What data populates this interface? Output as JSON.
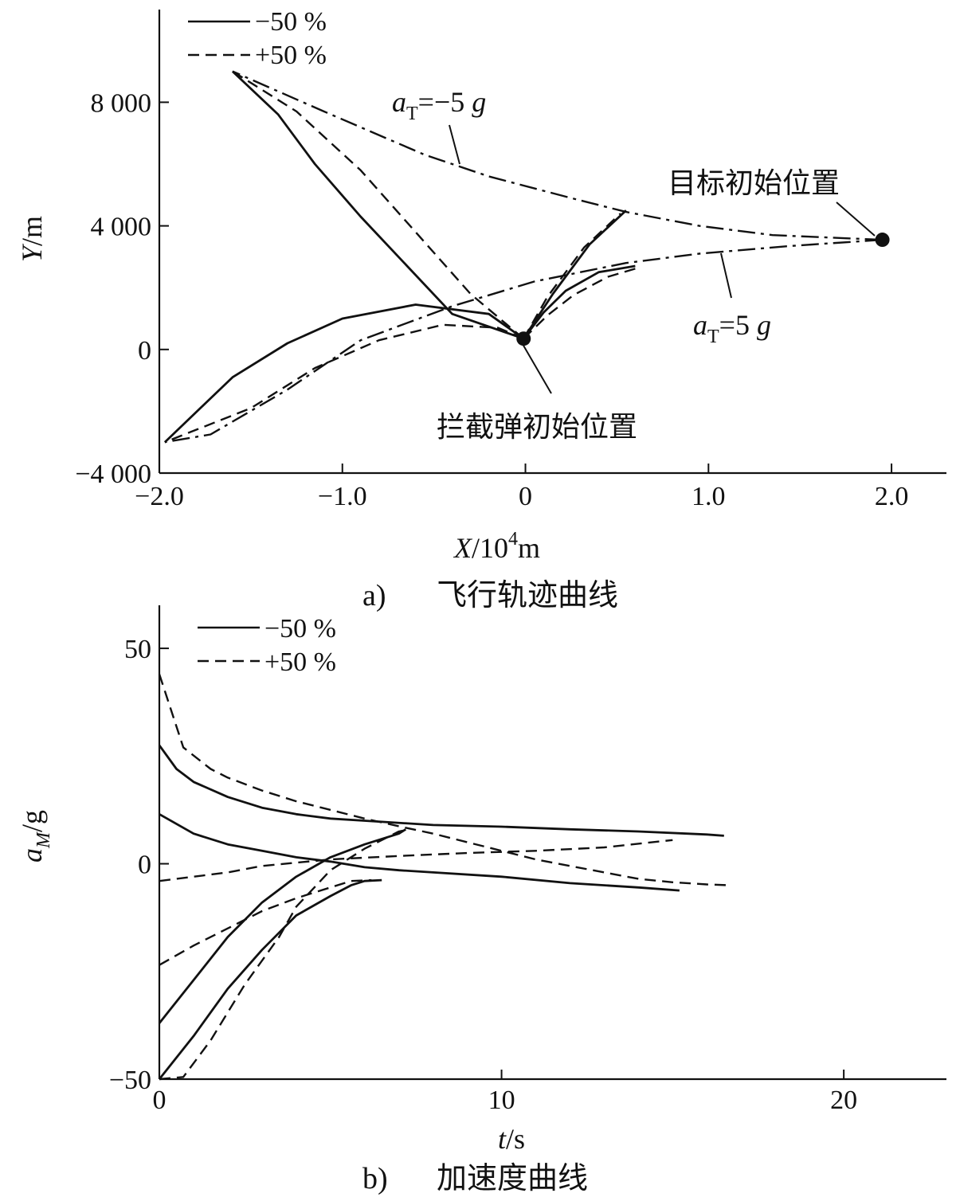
{
  "chart_data": [
    {
      "type": "line",
      "subplot_label": "a)",
      "caption": "飞行轨迹曲线",
      "xlabel": {
        "var": "X",
        "unit_base": "/10",
        "unit_exp": "4",
        "unit_tail": "m"
      },
      "ylabel": {
        "var": "Y",
        "unit": "/m"
      },
      "xlim": [
        -2.0,
        2.3
      ],
      "ylim": [
        -4000,
        11000
      ],
      "xticks": [
        -2.0,
        -1.0,
        0,
        1.0,
        2.0
      ],
      "xtick_labels": [
        "−2.0",
        "−1.0",
        "0",
        "1.0",
        "2.0"
      ],
      "yticks": [
        -4000,
        0,
        4000,
        8000
      ],
      "ytick_labels": [
        "−4 000",
        "0",
        "4 000",
        "8 000"
      ],
      "legend": [
        {
          "label": "−50 %",
          "style": "solid"
        },
        {
          "label": "+50 %",
          "style": "dashed"
        }
      ],
      "legend_position": "top-left",
      "annotations": {
        "target": "目标初始位置",
        "interceptor": "拦截弹初始位置",
        "at_neg_base": "a",
        "at_neg_sub": "T",
        "at_neg_rest": "=−5 ",
        "at_neg_g": "g",
        "at_pos_base": "a",
        "at_pos_sub": "T",
        "at_pos_rest": "=5 ",
        "at_pos_g": "g"
      },
      "points": {
        "interceptor_start": [
          -0.01,
          350
        ],
        "target_start": [
          1.95,
          3550
        ]
      },
      "series": [
        {
          "style": "dashdot",
          "points": [
            [
              1.95,
              3550
            ],
            [
              1.35,
              3700
            ],
            [
              0.95,
              4000
            ],
            [
              0.55,
              4450
            ],
            [
              0.25,
              4900
            ],
            [
              -0.2,
              5600
            ],
            [
              -0.55,
              6300
            ],
            [
              -1.1,
              7700
            ],
            [
              -1.6,
              9000
            ]
          ]
        },
        {
          "style": "dashdot",
          "points": [
            [
              1.95,
              3550
            ],
            [
              1.45,
              3350
            ],
            [
              0.95,
              3100
            ],
            [
              0.55,
              2800
            ],
            [
              0.05,
              2200
            ],
            [
              -0.4,
              1400
            ],
            [
              -0.9,
              300
            ],
            [
              -1.3,
              -1300
            ],
            [
              -1.72,
              -2750
            ],
            [
              -1.97,
              -3000
            ]
          ]
        },
        {
          "style": "solid",
          "points": [
            [
              -0.01,
              350
            ],
            [
              -0.4,
              1150
            ],
            [
              -0.9,
              4300
            ],
            [
              -1.15,
              6000
            ],
            [
              -1.35,
              7600
            ],
            [
              -1.6,
              9000
            ]
          ]
        },
        {
          "style": "dashed",
          "points": [
            [
              -0.01,
              350
            ],
            [
              -0.3,
              1800
            ],
            [
              -0.6,
              3800
            ],
            [
              -0.9,
              5800
            ],
            [
              -1.25,
              7700
            ],
            [
              -1.6,
              9000
            ]
          ]
        },
        {
          "style": "solid",
          "points": [
            [
              -0.01,
              350
            ],
            [
              -0.2,
              1150
            ],
            [
              -0.6,
              1450
            ],
            [
              -1.0,
              1000
            ],
            [
              -1.3,
              200
            ],
            [
              -1.6,
              -900
            ],
            [
              -1.97,
              -3000
            ]
          ]
        },
        {
          "style": "dashed",
          "points": [
            [
              -0.01,
              350
            ],
            [
              -0.15,
              700
            ],
            [
              -0.45,
              800
            ],
            [
              -0.8,
              300
            ],
            [
              -1.15,
              -600
            ],
            [
              -1.5,
              -1900
            ],
            [
              -1.97,
              -3000
            ]
          ]
        },
        {
          "style": "solid",
          "points": [
            [
              -0.01,
              350
            ],
            [
              0.15,
              1800
            ],
            [
              0.35,
              3400
            ],
            [
              0.55,
              4500
            ]
          ]
        },
        {
          "style": "dashed",
          "points": [
            [
              -0.01,
              350
            ],
            [
              0.12,
              1700
            ],
            [
              0.32,
              3300
            ],
            [
              0.52,
              4400
            ]
          ]
        },
        {
          "style": "solid",
          "points": [
            [
              -0.01,
              350
            ],
            [
              0.1,
              1200
            ],
            [
              0.22,
              1900
            ],
            [
              0.4,
              2500
            ],
            [
              0.6,
              2700
            ]
          ]
        },
        {
          "style": "dashed",
          "points": [
            [
              -0.01,
              350
            ],
            [
              0.12,
              1100
            ],
            [
              0.26,
              1750
            ],
            [
              0.45,
              2350
            ],
            [
              0.62,
              2650
            ]
          ]
        }
      ]
    },
    {
      "type": "line",
      "subplot_label": "b)",
      "caption": "加速度曲线",
      "xlabel": {
        "var": "t",
        "unit": "/s"
      },
      "ylabel": {
        "var": "a",
        "sub": "M",
        "unit": "/g"
      },
      "xlim": [
        0,
        23
      ],
      "ylim": [
        -50,
        60
      ],
      "xticks": [
        0,
        10,
        20
      ],
      "xtick_labels": [
        "0",
        "10",
        "20"
      ],
      "yticks": [
        -50,
        0,
        50
      ],
      "ytick_labels": [
        "−50",
        "0",
        "50"
      ],
      "legend": [
        {
          "label": "−50 %",
          "style": "solid"
        },
        {
          "label": "+50 %",
          "style": "dashed"
        }
      ],
      "legend_position": "top-left",
      "series": [
        {
          "style": "solid",
          "points": [
            [
              0,
              27.5
            ],
            [
              0.5,
              22
            ],
            [
              1,
              19
            ],
            [
              2,
              15.5
            ],
            [
              3,
              13
            ],
            [
              4,
              11.5
            ],
            [
              5,
              10.5
            ],
            [
              6,
              10
            ],
            [
              8,
              9
            ],
            [
              10,
              8.6
            ],
            [
              12,
              8
            ],
            [
              14,
              7.5
            ],
            [
              16,
              6.8
            ],
            [
              16.5,
              6.5
            ]
          ]
        },
        {
          "style": "solid",
          "points": [
            [
              0,
              11.5
            ],
            [
              1,
              7
            ],
            [
              2,
              4.5
            ],
            [
              3,
              3
            ],
            [
              4,
              1.5
            ],
            [
              5,
              0.5
            ],
            [
              6,
              -0.8
            ],
            [
              7,
              -1.5
            ],
            [
              8,
              -2
            ],
            [
              10,
              -3
            ],
            [
              12,
              -4.5
            ],
            [
              14,
              -5.5
            ],
            [
              15.2,
              -6.2
            ]
          ]
        },
        {
          "style": "solid",
          "points": [
            [
              0,
              -37
            ],
            [
              1,
              -27
            ],
            [
              2,
              -17
            ],
            [
              3,
              -9
            ],
            [
              4,
              -3
            ],
            [
              5,
              1.5
            ],
            [
              6,
              4.5
            ],
            [
              7,
              7
            ],
            [
              7.2,
              8
            ]
          ]
        },
        {
          "style": "solid",
          "points": [
            [
              0,
              -50
            ],
            [
              1,
              -40
            ],
            [
              2,
              -29
            ],
            [
              3,
              -20
            ],
            [
              4,
              -12
            ],
            [
              5,
              -7.5
            ],
            [
              5.6,
              -5
            ],
            [
              6,
              -4
            ],
            [
              6.5,
              -3.8
            ]
          ]
        },
        {
          "style": "dashed",
          "points": [
            [
              0,
              44
            ],
            [
              0.7,
              27
            ],
            [
              1.5,
              22
            ],
            [
              2,
              20
            ],
            [
              3,
              17
            ],
            [
              4,
              14.5
            ],
            [
              5,
              12.5
            ],
            [
              6,
              10.5
            ],
            [
              7,
              8.7
            ],
            [
              8,
              7
            ],
            [
              9,
              5
            ],
            [
              10,
              3
            ],
            [
              11,
              1
            ],
            [
              12,
              -0.5
            ],
            [
              13,
              -2
            ],
            [
              14,
              -3.5
            ],
            [
              15,
              -4.3
            ],
            [
              16,
              -4.8
            ],
            [
              16.7,
              -5
            ]
          ]
        },
        {
          "style": "dashed",
          "points": [
            [
              0,
              -4
            ],
            [
              1,
              -3
            ],
            [
              2,
              -2
            ],
            [
              3,
              -0.5
            ],
            [
              5,
              1
            ],
            [
              7,
              1.8
            ],
            [
              9,
              2.5
            ],
            [
              11,
              3
            ],
            [
              13,
              3.8
            ],
            [
              15,
              5.5
            ]
          ]
        },
        {
          "style": "dashed",
          "points": [
            [
              0,
              -23.5
            ],
            [
              1,
              -19
            ],
            [
              2,
              -15
            ],
            [
              3,
              -11
            ],
            [
              4,
              -8
            ],
            [
              5,
              -5.5
            ],
            [
              5.6,
              -4
            ],
            [
              6.2,
              -3.8
            ]
          ]
        },
        {
          "style": "dashed",
          "points": [
            [
              0,
              -50
            ],
            [
              0.7,
              -49.5
            ],
            [
              1.5,
              -41
            ],
            [
              2.5,
              -28
            ],
            [
              3.5,
              -17
            ],
            [
              4,
              -10
            ],
            [
              5,
              -1.5
            ],
            [
              6,
              3.5
            ],
            [
              7,
              7.5
            ],
            [
              7.3,
              8
            ]
          ]
        }
      ]
    }
  ]
}
